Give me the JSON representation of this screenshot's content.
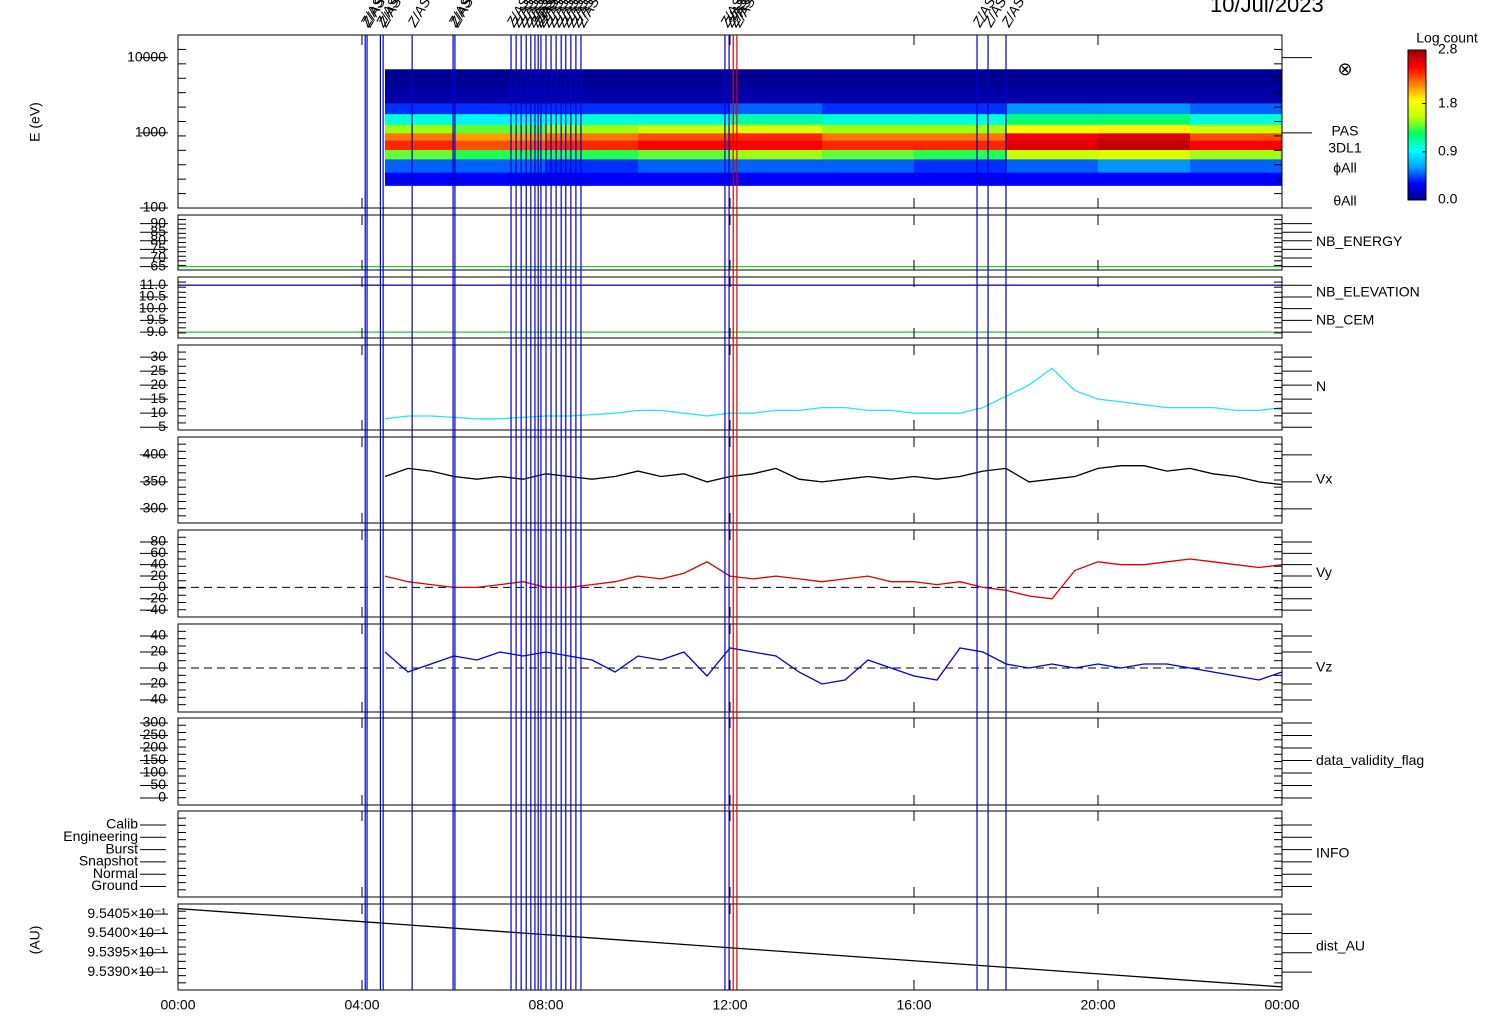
{
  "title": "10/Jul/2023",
  "x_axis": {
    "xlim": [
      0,
      24
    ],
    "xticks": [
      {
        "value": 0,
        "label": "00:00"
      },
      {
        "value": 4,
        "label": "04:00"
      },
      {
        "value": 8,
        "label": "08:00"
      },
      {
        "value": 12,
        "label": "12:00"
      },
      {
        "value": 16,
        "label": "16:00"
      },
      {
        "value": 20,
        "label": "20:00"
      },
      {
        "value": 24,
        "label": "00:00"
      }
    ]
  },
  "events": [
    {
      "t": 4.07,
      "label": "Z/AS",
      "color": "#0000cc"
    },
    {
      "t": 4.11,
      "label": "Z/AS",
      "color": "#0000cc"
    },
    {
      "t": 4.4,
      "label": "Z/AS",
      "color": "#0000cc"
    },
    {
      "t": 4.46,
      "label": "Z/AS",
      "color": "#0000cc"
    },
    {
      "t": 5.09,
      "label": "Z/AS",
      "color": "#0000cc"
    },
    {
      "t": 5.98,
      "label": "Z/AS",
      "color": "#0000cc"
    },
    {
      "t": 6.02,
      "label": "Z/AS",
      "color": "#0000cc"
    },
    {
      "t": 7.24,
      "label": "Z/AS",
      "color": "#0000cc"
    },
    {
      "t": 7.35,
      "label": "Z/AS",
      "color": "#0000cc"
    },
    {
      "t": 7.46,
      "label": "Z/AS",
      "color": "#0000cc"
    },
    {
      "t": 7.57,
      "label": "Z/AS",
      "color": "#0000cc"
    },
    {
      "t": 7.67,
      "label": "Z/AS",
      "color": "#0000cc"
    },
    {
      "t": 7.76,
      "label": "Z/AS",
      "color": "#0000cc"
    },
    {
      "t": 7.83,
      "label": "Z/AS",
      "color": "#0000cc"
    },
    {
      "t": 7.89,
      "label": "Z/AS",
      "color": "#0000cc"
    },
    {
      "t": 8.0,
      "label": "Z/AS",
      "color": "#0000cc"
    },
    {
      "t": 8.11,
      "label": "Z/AS",
      "color": "#0000cc"
    },
    {
      "t": 8.22,
      "label": "Z/AS",
      "color": "#0000cc"
    },
    {
      "t": 8.33,
      "label": "Z/AS",
      "color": "#0000cc"
    },
    {
      "t": 8.43,
      "label": "Z/AS",
      "color": "#0000cc"
    },
    {
      "t": 8.54,
      "label": "Z/AS",
      "color": "#0000cc"
    },
    {
      "t": 8.65,
      "label": "Z/AS",
      "color": "#0000cc"
    },
    {
      "t": 8.76,
      "label": "Z/AS",
      "color": "#0000cc"
    },
    {
      "t": 11.89,
      "label": "Z/AS",
      "color": "#0000cc"
    },
    {
      "t": 11.98,
      "label": "Z/AS",
      "color": "#0000cc"
    },
    {
      "t": 12.07,
      "label": "Z/AS",
      "color": "#dd0000"
    },
    {
      "t": 12.15,
      "label": "Z/AS",
      "color": "#dd0000"
    },
    {
      "t": 17.37,
      "label": "Z/AS",
      "color": "#0000cc"
    },
    {
      "t": 17.61,
      "label": "Z/AS",
      "color": "#0000cc"
    },
    {
      "t": 18.0,
      "label": "Z/AS",
      "color": "#0000cc"
    }
  ],
  "chart_data": [
    {
      "type": "heatmap",
      "ylabel": "E (eV)",
      "log_y": true,
      "ylim": [
        100,
        20000
      ],
      "yticks": [
        100,
        1000,
        10000
      ],
      "x_bins": [
        4.5,
        6,
        8,
        10,
        12,
        14,
        16,
        18,
        20,
        22,
        24
      ],
      "y_bins": [
        200,
        300,
        450,
        600,
        800,
        1000,
        1300,
        1800,
        2500,
        4000,
        7000
      ],
      "z": [
        [
          0.3,
          0.3,
          0.3,
          0.3,
          0.3,
          0.3,
          0.3,
          0.3,
          0.3,
          0.3
        ],
        [
          0.5,
          0.5,
          0.4,
          0.5,
          0.5,
          0.5,
          0.4,
          0.5,
          0.6,
          0.5
        ],
        [
          1.4,
          1.3,
          1.3,
          1.4,
          1.5,
          1.4,
          1.3,
          1.6,
          1.7,
          1.5
        ],
        [
          2.4,
          2.3,
          2.4,
          2.5,
          2.5,
          2.4,
          2.4,
          2.6,
          2.7,
          2.5
        ],
        [
          2.2,
          2.1,
          2.2,
          2.3,
          2.4,
          2.2,
          2.2,
          2.5,
          2.6,
          2.3
        ],
        [
          1.5,
          1.4,
          1.5,
          1.6,
          1.7,
          1.5,
          1.5,
          1.8,
          1.9,
          1.6
        ],
        [
          1.0,
          0.9,
          1.0,
          1.0,
          1.1,
          1.0,
          1.0,
          1.2,
          1.2,
          1.0
        ],
        [
          0.4,
          0.4,
          0.4,
          0.4,
          0.5,
          0.4,
          0.4,
          0.6,
          0.6,
          0.5
        ],
        [
          0.1,
          0.1,
          0.1,
          0.1,
          0.1,
          0.1,
          0.1,
          0.1,
          0.1,
          0.1
        ],
        [
          0.05,
          0.05,
          0.05,
          0.05,
          0.05,
          0.05,
          0.05,
          0.05,
          0.05,
          0.05
        ]
      ],
      "zlim": [
        0,
        2.8
      ],
      "colormap": [
        "#000080",
        "#0000ff",
        "#00a0ff",
        "#00ffff",
        "#00ff60",
        "#c0ff00",
        "#ffff00",
        "#ff8000",
        "#ff0000",
        "#a00000"
      ],
      "colorbar_label": "Log count",
      "zticks": [
        {
          "value": 0,
          "label": "0.0"
        },
        {
          "value": 0.9,
          "label": "0.9"
        },
        {
          "value": 1.8,
          "label": "1.8"
        },
        {
          "value": 2.8,
          "label": "2.8"
        }
      ],
      "labels": [
        "PAS",
        "3DL1",
        "ϕAll",
        "θAll"
      ],
      "symbol": "⊗"
    },
    {
      "type": "line",
      "ylim": [
        63,
        95
      ],
      "yticks": [
        65,
        70,
        75,
        80,
        85,
        90
      ],
      "series": [
        {
          "name": "NB_ENERGY",
          "color": "#22cc22",
          "x": [
            0,
            24
          ],
          "values": [
            65,
            65
          ]
        }
      ]
    },
    {
      "type": "line",
      "ylim": [
        8.75,
        11.35
      ],
      "yticks": [
        {
          "value": 11,
          "label": "11.0"
        },
        {
          "value": 10.5,
          "label": "10.5"
        },
        {
          "value": 10,
          "label": "10.0"
        },
        {
          "value": 9.5,
          "label": "9.5"
        },
        {
          "value": 9,
          "label": "9.0"
        }
      ],
      "series": [
        {
          "name": "NB_ELEVATION",
          "color": "#22cc22",
          "x": [
            0,
            24
          ],
          "values": [
            9,
            9
          ]
        },
        {
          "name": "NB_CEM",
          "color": "#1a1aaa",
          "x": [
            0,
            24
          ],
          "values": [
            11,
            11
          ]
        }
      ]
    },
    {
      "type": "line",
      "ylim": [
        4,
        34.3
      ],
      "yticks": [
        5,
        10,
        15,
        20,
        25,
        30
      ],
      "x": [
        4.5,
        5,
        5.5,
        6,
        6.5,
        7,
        7.5,
        8,
        8.5,
        9,
        9.5,
        10,
        10.5,
        11,
        11.5,
        12,
        12.5,
        13,
        13.5,
        14,
        14.5,
        15,
        15.5,
        16,
        16.5,
        17,
        17.5,
        18,
        18.5,
        19,
        19.5,
        20,
        20.5,
        21,
        21.5,
        22,
        22.5,
        23,
        23.5,
        24
      ],
      "series": [
        {
          "name": "N",
          "color": "#22e6f0",
          "values": [
            8,
            9,
            9,
            8.5,
            8,
            8,
            8.5,
            9,
            9,
            9.5,
            10,
            11,
            11,
            10,
            9,
            10,
            10,
            11,
            11,
            12,
            12,
            11,
            11,
            10,
            10,
            10,
            12,
            16,
            20,
            26,
            18,
            15,
            14,
            13,
            12,
            12,
            12,
            11,
            11,
            12
          ]
        }
      ]
    },
    {
      "type": "line",
      "ylim": [
        274,
        433
      ],
      "yticks": [
        300,
        350,
        400
      ],
      "x": [
        4.5,
        5,
        5.5,
        6,
        6.5,
        7,
        7.5,
        8,
        8.5,
        9,
        9.5,
        10,
        10.5,
        11,
        11.5,
        12,
        12.5,
        13,
        13.5,
        14,
        14.5,
        15,
        15.5,
        16,
        16.5,
        17,
        17.5,
        18,
        18.5,
        19,
        19.5,
        20,
        20.5,
        21,
        21.5,
        22,
        22.5,
        23,
        23.5,
        24
      ],
      "series": [
        {
          "name": "Vx",
          "color": "#000000",
          "values": [
            360,
            375,
            370,
            360,
            355,
            360,
            355,
            365,
            360,
            355,
            360,
            370,
            360,
            365,
            350,
            360,
            365,
            375,
            355,
            350,
            355,
            360,
            355,
            360,
            355,
            360,
            370,
            375,
            350,
            355,
            360,
            375,
            380,
            380,
            370,
            375,
            365,
            360,
            350,
            345
          ]
        }
      ]
    },
    {
      "type": "line",
      "ylim": [
        -52,
        101
      ],
      "yticks": [
        -40,
        -20,
        0,
        20,
        40,
        60,
        80
      ],
      "zero_line": true,
      "x": [
        4.5,
        5,
        5.5,
        6,
        6.5,
        7,
        7.5,
        8,
        8.5,
        9,
        9.5,
        10,
        10.5,
        11,
        11.5,
        12,
        12.5,
        13,
        13.5,
        14,
        14.5,
        15,
        15.5,
        16,
        16.5,
        17,
        17.5,
        18,
        18.5,
        19,
        19.5,
        20,
        20.5,
        21,
        21.5,
        22,
        22.5,
        23,
        23.5,
        24
      ],
      "series": [
        {
          "name": "Vy",
          "color": "#e00000",
          "values": [
            20,
            10,
            5,
            0,
            0,
            5,
            10,
            0,
            0,
            5,
            10,
            20,
            15,
            25,
            45,
            20,
            15,
            20,
            15,
            10,
            15,
            20,
            10,
            10,
            5,
            10,
            0,
            -5,
            -15,
            -20,
            30,
            45,
            40,
            40,
            45,
            50,
            45,
            40,
            35,
            40
          ]
        }
      ]
    },
    {
      "type": "line",
      "ylim": [
        -55,
        55
      ],
      "yticks": [
        -40,
        -20,
        0,
        20,
        40
      ],
      "zero_line": true,
      "x": [
        4.5,
        5,
        5.5,
        6,
        6.5,
        7,
        7.5,
        8,
        8.5,
        9,
        9.5,
        10,
        10.5,
        11,
        11.5,
        12,
        12.5,
        13,
        13.5,
        14,
        14.5,
        15,
        15.5,
        16,
        16.5,
        17,
        17.5,
        18,
        18.5,
        19,
        19.5,
        20,
        20.5,
        21,
        21.5,
        22,
        22.5,
        23,
        23.5,
        24
      ],
      "series": [
        {
          "name": "Vz",
          "color": "#0000e0",
          "values": [
            20,
            -5,
            5,
            15,
            10,
            20,
            15,
            20,
            15,
            10,
            -5,
            15,
            10,
            20,
            -10,
            25,
            20,
            15,
            -5,
            -20,
            -15,
            10,
            0,
            -10,
            -15,
            25,
            20,
            5,
            0,
            5,
            0,
            5,
            0,
            5,
            5,
            0,
            -5,
            -10,
            -15,
            -5
          ]
        }
      ]
    },
    {
      "type": "line",
      "ylim": [
        -28,
        320
      ],
      "yticks": [
        0,
        50,
        100,
        150,
        200,
        250,
        300
      ],
      "label": "data_validity_flag",
      "series": []
    },
    {
      "type": "category",
      "categories": [
        "Calib",
        "Engineering",
        "Burst",
        "Snapshot",
        "Normal",
        "Ground"
      ],
      "label": "INFO"
    },
    {
      "type": "line",
      "ylabel": "(AU)",
      "ylim": [
        0.953854,
        0.954076
      ],
      "yticks": [
        {
          "value": 0.95405,
          "label": "9.5405×10⁻¹"
        },
        {
          "value": 0.954,
          "label": "9.5400×10⁻¹"
        },
        {
          "value": 0.95395,
          "label": "9.5395×10⁻¹"
        },
        {
          "value": 0.9539,
          "label": "9.5390×10⁻¹"
        }
      ],
      "series": [
        {
          "name": "dist_AU",
          "color": "#000000",
          "x": [
            0,
            24
          ],
          "values": [
            0.954064,
            0.953862
          ]
        }
      ]
    }
  ]
}
